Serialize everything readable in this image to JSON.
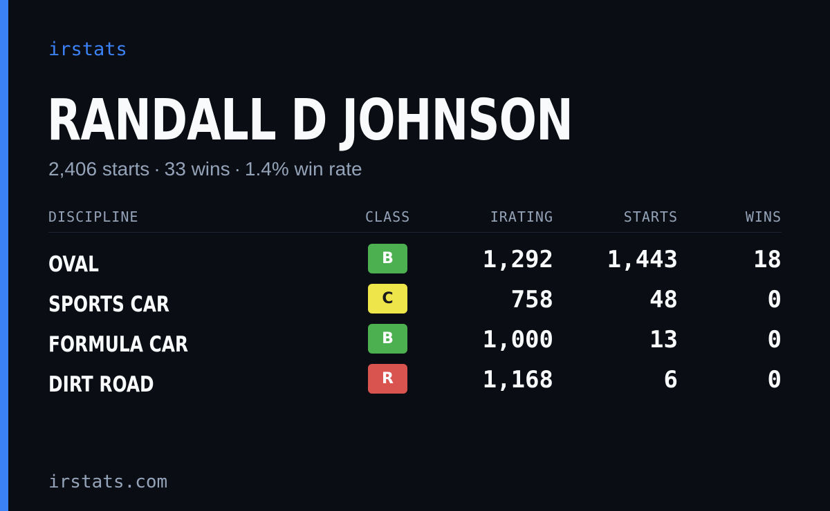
{
  "brand": "irstats",
  "driver_name": "RANDALL D JOHNSON",
  "summary": {
    "starts": "2,406 starts",
    "wins": "33 wins",
    "win_rate": "1.4% win rate",
    "separator": "·"
  },
  "table": {
    "headers": {
      "discipline": "DISCIPLINE",
      "class": "CLASS",
      "irating": "IRATING",
      "starts": "STARTS",
      "wins": "WINS"
    },
    "rows": [
      {
        "discipline": "OVAL",
        "class": "B",
        "class_color": "#4caf50",
        "class_text_color": "#ffffff",
        "irating": "1,292",
        "starts": "1,443",
        "wins": "18"
      },
      {
        "discipline": "SPORTS CAR",
        "class": "C",
        "class_color": "#ede54a",
        "class_text_color": "#1a1a1a",
        "irating": "758",
        "starts": "48",
        "wins": "0"
      },
      {
        "discipline": "FORMULA CAR",
        "class": "B",
        "class_color": "#4caf50",
        "class_text_color": "#ffffff",
        "irating": "1,000",
        "starts": "13",
        "wins": "0"
      },
      {
        "discipline": "DIRT ROAD",
        "class": "R",
        "class_color": "#d9534f",
        "class_text_color": "#ffffff",
        "irating": "1,168",
        "starts": "6",
        "wins": "0"
      }
    ]
  },
  "footer_url": "irstats.com",
  "colors": {
    "background": "#0b0d14",
    "accent": "#3b82f6",
    "muted": "#94a3b8",
    "text": "#f8fafc"
  }
}
